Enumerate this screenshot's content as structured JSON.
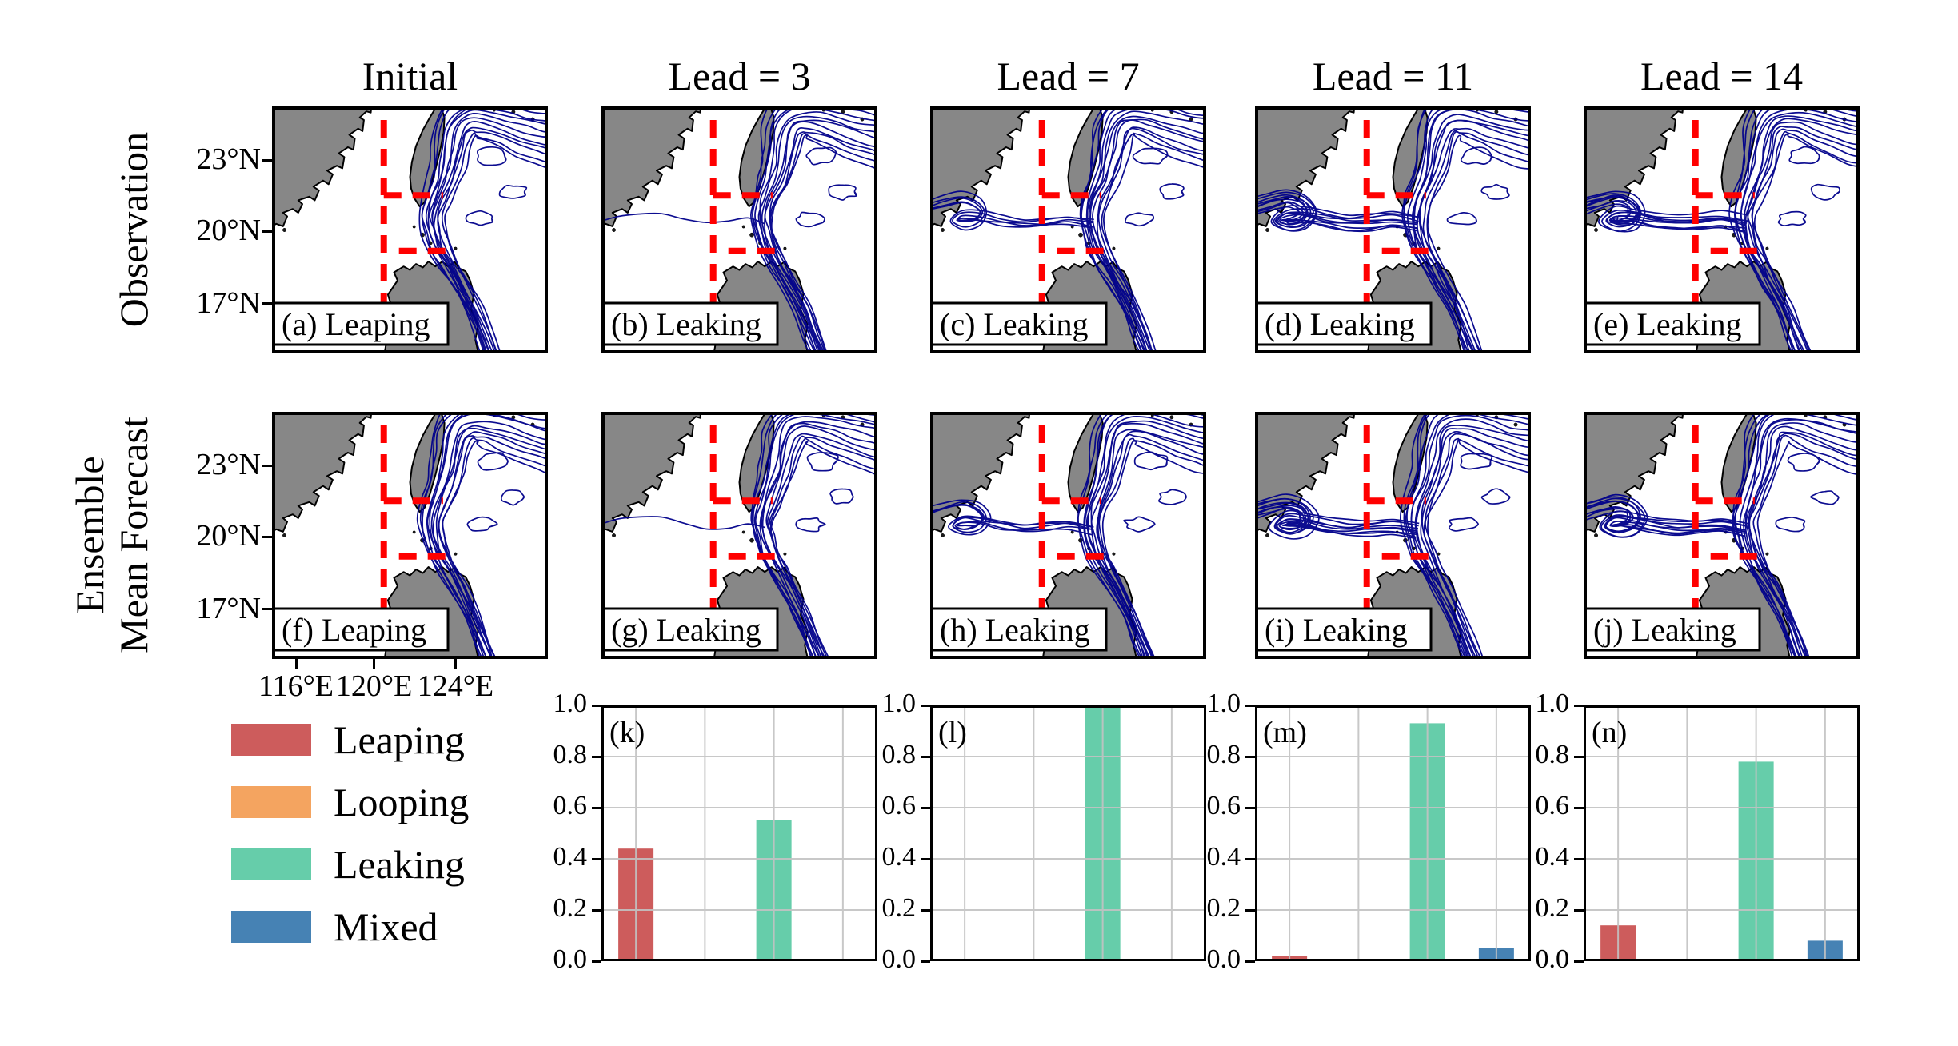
{
  "colors": {
    "land": "#878787",
    "coast": "#000000",
    "current": "#00008b",
    "gate": "#ff0000",
    "leaping": "#cd5c5c",
    "looping": "#f4a460",
    "leaking": "#66cdaa",
    "mixed": "#4682b4",
    "grid": "#c3c3c3"
  },
  "rows": [
    {
      "lines": [
        "Observation"
      ]
    },
    {
      "lines": [
        "Ensemble",
        "Mean Forecast"
      ]
    }
  ],
  "col_titles": [
    "Initial",
    "Lead = 3",
    "Lead = 7",
    "Lead = 11",
    "Lead = 14"
  ],
  "map_panels": [
    {
      "label": "(a) Leaping",
      "variant": "leaping",
      "row": 0,
      "col": 0
    },
    {
      "label": "(b) Leaking",
      "variant": "leak1",
      "row": 0,
      "col": 1
    },
    {
      "label": "(c) Leaking",
      "variant": "leak_med",
      "row": 0,
      "col": 2
    },
    {
      "label": "(d) Leaking",
      "variant": "leak_big",
      "row": 0,
      "col": 3
    },
    {
      "label": "(e) Leaking",
      "variant": "leak_big",
      "row": 0,
      "col": 4
    },
    {
      "label": "(f) Leaping",
      "variant": "leaping",
      "row": 1,
      "col": 0
    },
    {
      "label": "(g) Leaking",
      "variant": "leak1",
      "row": 1,
      "col": 1
    },
    {
      "label": "(h) Leaking",
      "variant": "leak_med",
      "row": 1,
      "col": 2
    },
    {
      "label": "(i) Leaking",
      "variant": "leak_big",
      "row": 1,
      "col": 3
    },
    {
      "label": "(j) Leaking",
      "variant": "leak_big",
      "row": 1,
      "col": 4
    }
  ],
  "map_axes": {
    "yticks": [
      "23°N",
      "20°N",
      "17°N"
    ],
    "xticks": [
      "116°E",
      "120°E",
      "124°E"
    ]
  },
  "legend": {
    "items": [
      {
        "label": "Leaping",
        "color_key": "leaping"
      },
      {
        "label": "Looping",
        "color_key": "looping"
      },
      {
        "label": "Leaking",
        "color_key": "leaking"
      },
      {
        "label": "Mixed",
        "color_key": "mixed"
      }
    ]
  },
  "chart_data": [
    {
      "type": "bar",
      "panel_label": "(k)",
      "categories": [
        "Leaping",
        "Looping",
        "Leaking",
        "Mixed"
      ],
      "values": [
        0.44,
        0.0,
        0.55,
        0.0
      ],
      "ylim": [
        0,
        1
      ],
      "yticks": [
        "0.0",
        "0.2",
        "0.4",
        "0.6",
        "0.8",
        "1.0"
      ],
      "grid": true,
      "legend_position": "outside-left"
    },
    {
      "type": "bar",
      "panel_label": "(l)",
      "categories": [
        "Leaping",
        "Looping",
        "Leaking",
        "Mixed"
      ],
      "values": [
        0.0,
        0.0,
        1.0,
        0.0
      ],
      "ylim": [
        0,
        1
      ],
      "yticks": [
        "0.0",
        "0.2",
        "0.4",
        "0.6",
        "0.8",
        "1.0"
      ],
      "grid": true
    },
    {
      "type": "bar",
      "panel_label": "(m)",
      "categories": [
        "Leaping",
        "Looping",
        "Leaking",
        "Mixed"
      ],
      "values": [
        0.02,
        0.0,
        0.93,
        0.05
      ],
      "ylim": [
        0,
        1
      ],
      "yticks": [
        "0.0",
        "0.2",
        "0.4",
        "0.6",
        "0.8",
        "1.0"
      ],
      "grid": true
    },
    {
      "type": "bar",
      "panel_label": "(n)",
      "categories": [
        "Leaping",
        "Looping",
        "Leaking",
        "Mixed"
      ],
      "values": [
        0.14,
        0.0,
        0.78,
        0.08
      ],
      "ylim": [
        0,
        1
      ],
      "yticks": [
        "0.0",
        "0.2",
        "0.4",
        "0.6",
        "0.8",
        "1.0"
      ],
      "grid": true
    }
  ]
}
